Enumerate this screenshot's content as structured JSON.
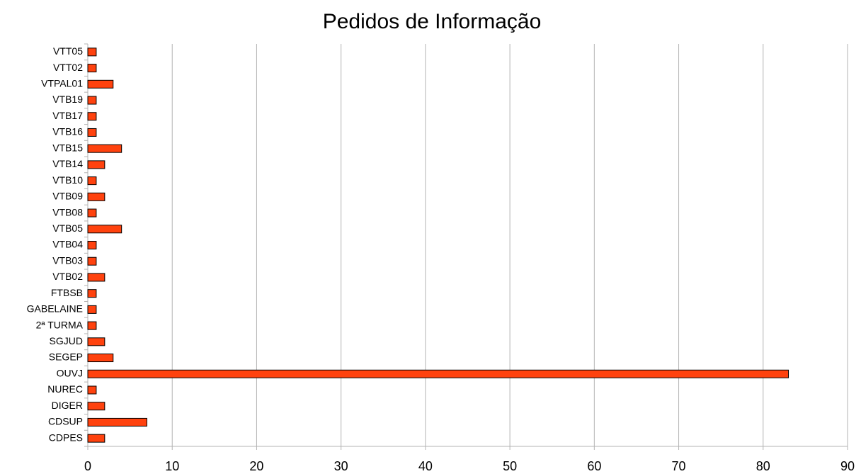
{
  "chart_data": {
    "type": "barh",
    "title": "Pedidos de Informação",
    "categories": [
      "VTT05",
      "VTT02",
      "VTPAL01",
      "VTB19",
      "VTB17",
      "VTB16",
      "VTB15",
      "VTB14",
      "VTB10",
      "VTB09",
      "VTB08",
      "VTB05",
      "VTB04",
      "VTB03",
      "VTB02",
      "FTBSB",
      "GABELAINE",
      "2ª TURMA",
      "SGJUD",
      "SEGEP",
      "OUVJ",
      "NUREC",
      "DIGER",
      "CDSUP",
      "CDPES"
    ],
    "values": [
      1,
      1,
      3,
      1,
      1,
      1,
      4,
      2,
      1,
      2,
      1,
      4,
      1,
      1,
      2,
      1,
      1,
      1,
      2,
      3,
      83,
      1,
      2,
      7,
      2
    ],
    "color": "#ff420e",
    "xlim": [
      0,
      90
    ],
    "xticks": [
      0,
      10,
      20,
      30,
      40,
      50,
      60,
      70,
      80,
      90
    ],
    "grid": true
  }
}
